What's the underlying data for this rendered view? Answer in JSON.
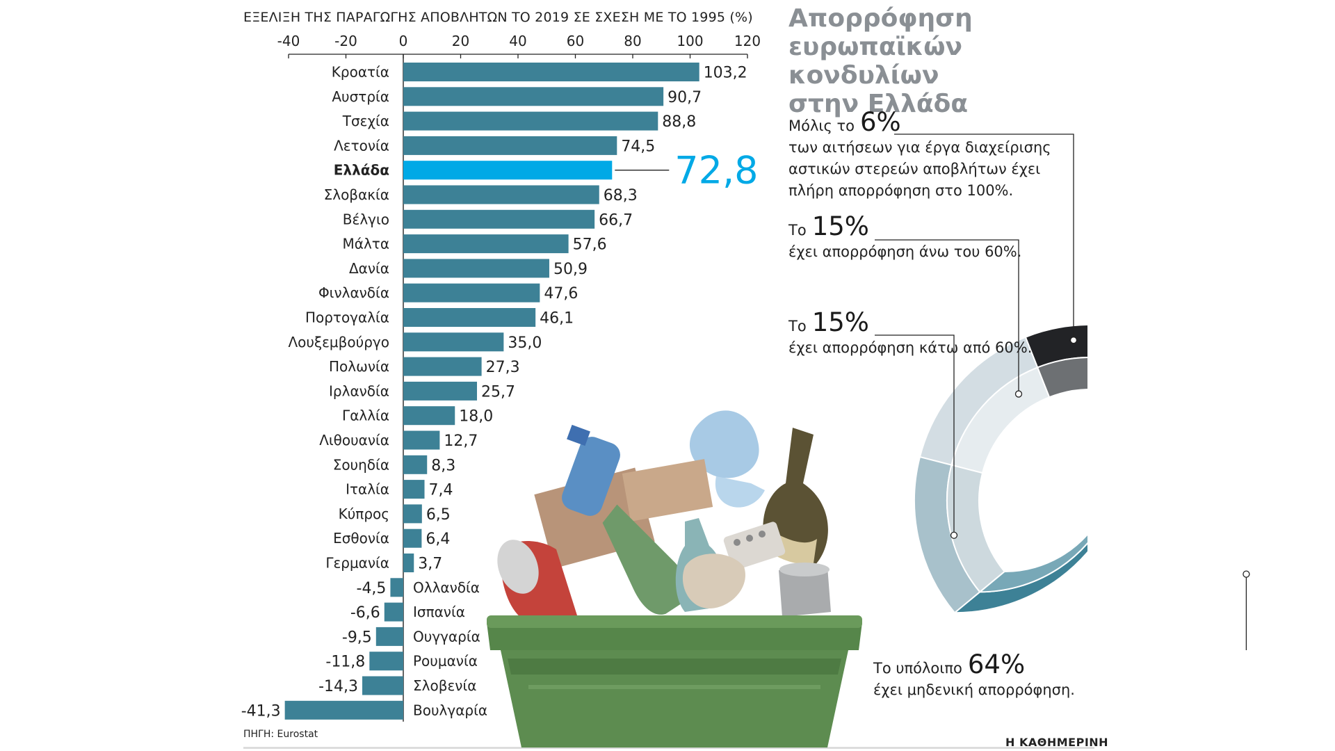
{
  "chart_data": [
    {
      "type": "bar",
      "orientation": "horizontal",
      "title": "ΕΞΕΛΙΞΗ ΤΗΣ ΠΑΡΑΓΩΓΗΣ ΑΠΟΒΛΗΤΩΝ ΤΟ 2019 ΣΕ ΣΧΕΣΗ ΜΕ ΤΟ 1995 (%)",
      "categories": [
        "Κροατία",
        "Αυστρία",
        "Τσεχία",
        "Λετονία",
        "Ελλάδα",
        "Σλοβακία",
        "Βέλγιο",
        "Μάλτα",
        "Δανία",
        "Φινλανδία",
        "Πορτογαλία",
        "Λουξεμβούργο",
        "Πολωνία",
        "Ιρλανδία",
        "Γαλλία",
        "Λιθουανία",
        "Σουηδία",
        "Ιταλία",
        "Κύπρος",
        "Εσθονία",
        "Γερμανία",
        "Ολλανδία",
        "Ισπανία",
        "Ουγγαρία",
        "Ρουμανία",
        "Σλοβενία",
        "Βουλγαρία"
      ],
      "values": [
        103.2,
        90.7,
        88.8,
        74.5,
        72.8,
        68.3,
        66.7,
        57.6,
        50.9,
        47.6,
        46.1,
        35.0,
        27.3,
        25.7,
        18.0,
        12.7,
        8.3,
        7.4,
        6.5,
        6.4,
        3.7,
        -4.5,
        -6.6,
        -9.5,
        -11.8,
        -14.3,
        -41.3
      ],
      "value_labels": [
        "103,2",
        "90,7",
        "88,8",
        "74,5",
        "72,8",
        "68,3",
        "66,7",
        "57,6",
        "50,9",
        "47,6",
        "46,1",
        "35,0",
        "27,3",
        "25,7",
        "18,0",
        "12,7",
        "8,3",
        "7,4",
        "6,5",
        "6,4",
        "3,7",
        "-4,5",
        "-6,6",
        "-9,5",
        "-11,8",
        "-14,3",
        "-41,3"
      ],
      "highlight_category": "Ελλάδα",
      "highlight_label": "72,8",
      "xlim": [
        -40,
        120
      ],
      "xticks": [
        -40,
        -20,
        0,
        20,
        40,
        60,
        80,
        100,
        120
      ],
      "xtick_labels": [
        "-40",
        "-20",
        "0",
        "20",
        "40",
        "60",
        "80",
        "100",
        "120"
      ],
      "axis_position": "top",
      "grid": false,
      "colors": {
        "bar": "#3d8196",
        "highlight": "#00a9e6",
        "highlight_text": "#00a9e6"
      }
    },
    {
      "type": "pie",
      "style": "donut",
      "title": "Απορρόφηση ευρωπαϊκών κονδυλίων στην Ελλάδα",
      "categories": [
        "πλήρη απορρόφηση στο 100%",
        "απορρόφηση άνω του 60%",
        "απορρόφηση κάτω από 60%",
        "μηδενική απορρόφηση"
      ],
      "values": [
        6,
        15,
        15,
        64
      ],
      "colors": {
        "outer": [
          "#222326",
          "#d3dde3",
          "#a8c1cb",
          "#3d8196"
        ],
        "inner": [
          "#6d7073",
          "#e6ecef",
          "#cdd9de",
          "#78a8b7"
        ]
      }
    }
  ],
  "side": {
    "title": "Απορρόφηση\nευρωπαϊκών κονδυλίων\nστην Ελλάδα",
    "c1_pre": "Μόλις το",
    "c1_pct": "6%",
    "c1_text": "των αιτήσεων για έργα διαχείρισης αστικών στερεών αποβλήτων έχει πλήρη απορρόφηση στο 100%.",
    "c2_pre": "Το",
    "c2_pct": "15%",
    "c2_text": "έχει απορρόφηση άνω του 60%.",
    "c3_pre": "Το",
    "c3_pct": "15%",
    "c3_text": "έχει απορρόφηση κάτω από 60%.",
    "c4_pre": "Το υπόλοιπο",
    "c4_pct": "64%",
    "c4_text": "έχει μηδενική απορρόφηση."
  },
  "footer": {
    "source": "ΠΗΓΗ: Eurostat",
    "brand": "Η ΚΑΘΗΜΕΡΙΝΗ"
  }
}
